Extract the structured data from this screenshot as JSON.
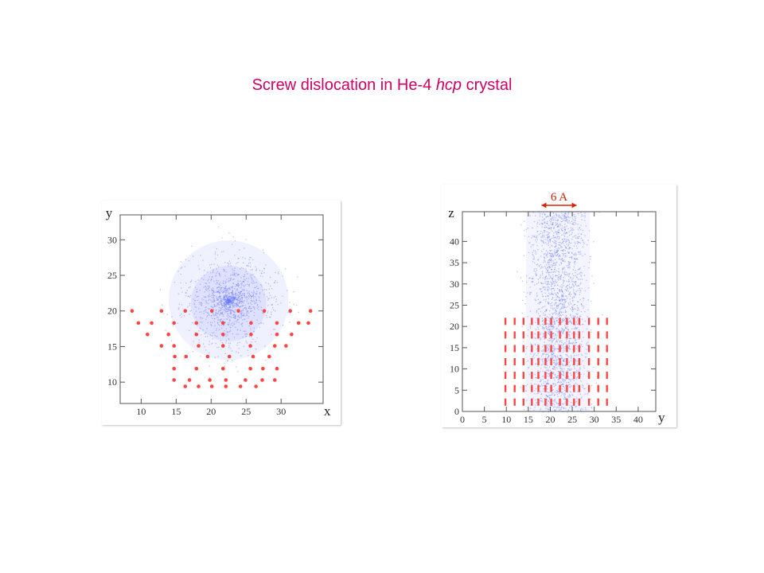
{
  "title": {
    "prefix": "Screw dislocation in He-4 ",
    "italic": "hcp",
    "suffix": " crystal"
  },
  "colors": {
    "title": "#cc0066",
    "lattice": "#ff4444",
    "density": "#6677ff"
  },
  "chart_data": [
    {
      "type": "scatter",
      "xlabel": "x",
      "ylabel": "y",
      "xlim": [
        7,
        36
      ],
      "ylim": [
        7,
        33.5
      ],
      "xticks": [
        10,
        15,
        20,
        25,
        30
      ],
      "yticks": [
        10,
        15,
        20,
        25,
        30
      ],
      "grid": false,
      "series": [
        {
          "marker": "dot",
          "color": "#ff4444",
          "points": [
            [
              8.7,
              20
            ],
            [
              12.9,
              20
            ],
            [
              16.3,
              20
            ],
            [
              20.1,
              20
            ],
            [
              23.9,
              20
            ],
            [
              27.6,
              20
            ],
            [
              31.3,
              20
            ],
            [
              34.2,
              20
            ],
            [
              9.6,
              18.3
            ],
            [
              11.5,
              18.3
            ],
            [
              14.7,
              18.3
            ],
            [
              17.9,
              18.3
            ],
            [
              21.7,
              18.3
            ],
            [
              25.7,
              18.3
            ],
            [
              29.4,
              18.3
            ],
            [
              32.5,
              18.3
            ],
            [
              33.9,
              18.3
            ],
            [
              10.9,
              16.7
            ],
            [
              13.9,
              16.7
            ],
            [
              17.9,
              16.7
            ],
            [
              21.7,
              16.7
            ],
            [
              25.7,
              16.7
            ],
            [
              29.4,
              16.7
            ],
            [
              31.5,
              16.7
            ],
            [
              12.9,
              15.1
            ],
            [
              14.7,
              15.1
            ],
            [
              18.2,
              15.1
            ],
            [
              21.7,
              15.1
            ],
            [
              25.6,
              15.1
            ],
            [
              29.1,
              15.1
            ],
            [
              30.7,
              15.1
            ],
            [
              14.8,
              13.6
            ],
            [
              16.4,
              13.6
            ],
            [
              19.5,
              13.6
            ],
            [
              22.6,
              13.6
            ],
            [
              26.0,
              13.6
            ],
            [
              28.3,
              13.6
            ],
            [
              14.7,
              11.9
            ],
            [
              17.9,
              11.9
            ],
            [
              21.7,
              11.9
            ],
            [
              25.6,
              11.9
            ],
            [
              27.4,
              11.9
            ],
            [
              29.4,
              11.9
            ],
            [
              14.7,
              10.3
            ],
            [
              16.9,
              10.3
            ],
            [
              19.8,
              10.3
            ],
            [
              22.1,
              10.3
            ],
            [
              24.9,
              10.3
            ],
            [
              27.3,
              10.3
            ],
            [
              29.1,
              10.3
            ],
            [
              16.3,
              9.4
            ],
            [
              18.2,
              9.4
            ],
            [
              20.1,
              9.4
            ],
            [
              22.1,
              9.4
            ],
            [
              24.2,
              9.4
            ],
            [
              26.4,
              9.4
            ]
          ]
        },
        {
          "name": "",
          "marker": "density cloud",
          "color": "#6677ff",
          "center": [
            22.5,
            21.5
          ],
          "radius": 9
        }
      ]
    },
    {
      "type": "scatter",
      "xlabel": "y",
      "ylabel": "z",
      "xlim": [
        0,
        44
      ],
      "ylim": [
        0,
        47
      ],
      "xticks": [
        0,
        5,
        10,
        15,
        20,
        25,
        30,
        35,
        40
      ],
      "yticks": [
        0,
        5,
        10,
        15,
        20,
        25,
        30,
        35,
        40
      ],
      "grid": false,
      "annotation": {
        "text": "6 A",
        "from": 18,
        "to": 26
      },
      "series": [
        {
          "marker": "dash",
          "color": "#ff4444",
          "columns": [
            9.8,
            11.9,
            13.9,
            15.8,
            17.3,
            18.9,
            20.2,
            22.2,
            23.8,
            25.4,
            26.6,
            28.8,
            30.9,
            32.9
          ],
          "z_levels": [
            2.2,
            5.4,
            8.5,
            11.7,
            14.8,
            18.0,
            21.2
          ]
        },
        {
          "marker": "density cloud",
          "color": "#6677ff",
          "y_range": [
            14.5,
            29
          ],
          "z_range": [
            0,
            47
          ]
        }
      ]
    }
  ]
}
